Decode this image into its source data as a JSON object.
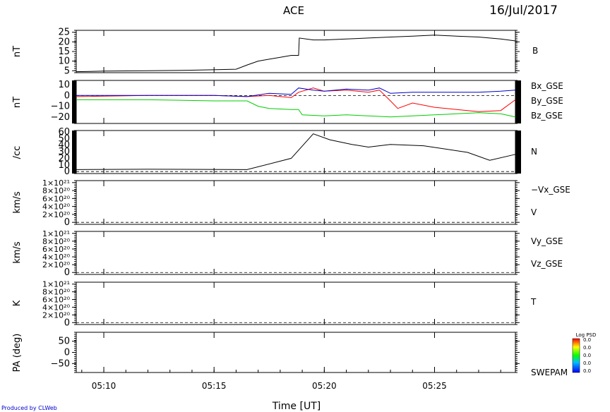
{
  "header": {
    "mission": "ACE",
    "date": "16/Jul/2017"
  },
  "footer": {
    "xaxis_title": "Time [UT]",
    "credit": "Produced by CLWeb"
  },
  "colorbar": {
    "title": "Log PSD",
    "tick_labels": [
      "0.0",
      "0.0",
      "0.0",
      "0.0",
      "0.0"
    ]
  },
  "chart_data": {
    "type": "line",
    "x_ticks": [
      "05:10",
      "05:15",
      "05:20",
      "05:25"
    ],
    "panels": [
      {
        "id": "B",
        "ylabel": "nT",
        "yticks": [
          "25",
          "20",
          "15",
          "10",
          "5"
        ],
        "ylim": [
          4,
          26
        ],
        "series": [
          {
            "name": "B",
            "color": "#000000",
            "x": [
              "05:08:45",
              "05:10:00",
              "05:12:00",
              "05:14:00",
              "05:16:00",
              "05:16:30",
              "05:17:00",
              "05:17:30",
              "05:18:00",
              "05:18:30",
              "05:18:50",
              "05:18:52",
              "05:19:30",
              "05:20:00",
              "05:21:00",
              "05:22:00",
              "05:23:00",
              "05:24:00",
              "05:25:00",
              "05:26:00",
              "05:27:00",
              "05:28:00",
              "05:28:40"
            ],
            "values": [
              4.5,
              4.8,
              5.0,
              5.3,
              5.8,
              8,
              10,
              11,
              12,
              13,
              13,
              22,
              21,
              21,
              21.5,
              22,
              22.5,
              23,
              23.5,
              23,
              22.5,
              21.5,
              20.5
            ]
          }
        ],
        "legend": [
          "B"
        ]
      },
      {
        "id": "B_GSE",
        "ylabel": "nT",
        "yticks": [
          "10",
          "0",
          "−10",
          "−20"
        ],
        "ylim": [
          -26,
          14
        ],
        "series": [
          {
            "name": "Bx_GSE",
            "color": "#ff0000",
            "x": [
              "05:08:45",
              "05:12:00",
              "05:15:00",
              "05:16:30",
              "05:17:30",
              "05:18:30",
              "05:18:50",
              "05:19:30",
              "05:20:00",
              "05:21:00",
              "05:22:00",
              "05:22:30",
              "05:23:00",
              "05:23:20",
              "05:24:00",
              "05:25:00",
              "05:26:00",
              "05:27:00",
              "05:28:00",
              "05:28:40"
            ],
            "values": [
              -1,
              0,
              0,
              -1,
              0,
              -2,
              3,
              7,
              4,
              5,
              3,
              5,
              -5,
              -12,
              -7,
              -11,
              -13,
              -15,
              -14,
              -4
            ]
          },
          {
            "name": "By_GSE",
            "color": "#00cc00",
            "x": [
              "05:08:45",
              "05:12:00",
              "05:15:00",
              "05:16:30",
              "05:17:00",
              "05:17:30",
              "05:18:30",
              "05:18:50",
              "05:19:00",
              "05:20:00",
              "05:21:00",
              "05:22:00",
              "05:23:00",
              "05:24:00",
              "05:25:00",
              "05:26:00",
              "05:27:00",
              "05:28:00",
              "05:28:40"
            ],
            "values": [
              -4,
              -4,
              -5,
              -5,
              -10,
              -12,
              -13,
              -13,
              -18,
              -19,
              -18,
              -19,
              -20,
              -19,
              -18,
              -17,
              -16,
              -17,
              -20
            ]
          },
          {
            "name": "Bz_GSE",
            "color": "#0000cc",
            "x": [
              "05:08:45",
              "05:12:00",
              "05:15:00",
              "05:16:30",
              "05:17:30",
              "05:18:30",
              "05:18:50",
              "05:19:30",
              "05:20:00",
              "05:21:00",
              "05:22:00",
              "05:22:30",
              "05:23:00",
              "05:24:00",
              "05:25:00",
              "05:26:00",
              "05:27:00",
              "05:28:00",
              "05:28:40"
            ],
            "values": [
              0,
              0,
              0,
              -1,
              2,
              1,
              7,
              5,
              4,
              6,
              5,
              7,
              2,
              3,
              3,
              3,
              3,
              4,
              5
            ]
          }
        ],
        "legend": [
          "Bx_GSE",
          "By_GSE",
          "Bz_GSE"
        ]
      },
      {
        "id": "N",
        "ylabel": "/cc",
        "yticks": [
          "60",
          "50",
          "40",
          "30",
          "20",
          "10",
          "0"
        ],
        "ylim": [
          -3,
          62
        ],
        "series": [
          {
            "name": "N",
            "color": "#000000",
            "x": [
              "05:08:45",
              "05:12:00",
              "05:16:30",
              "05:18:30",
              "05:19:30",
              "05:20:15",
              "05:21:15",
              "05:22:00",
              "05:23:00",
              "05:24:30",
              "05:26:30",
              "05:27:30",
              "05:28:40"
            ],
            "values": [
              3,
              3.5,
              3,
              20,
              57,
              48,
              41,
              37,
              41,
              39,
              29,
              17,
              26
            ]
          }
        ],
        "legend": [
          "N"
        ]
      },
      {
        "id": "Vx",
        "ylabel": "km/s",
        "yticks": [
          "1×10²¹",
          "8×10²⁰",
          "6×10²⁰",
          "4×10²⁰",
          "2×10²⁰",
          "0"
        ],
        "ylim": [
          -5e+19,
          1.05e+21
        ],
        "series": [],
        "legend": [
          "−Vx_GSE",
          "V"
        ]
      },
      {
        "id": "Vyz",
        "ylabel": "km/s",
        "yticks": [
          "1×10²¹",
          "8×10²⁰",
          "6×10²⁰",
          "4×10²⁰",
          "2×10²⁰",
          "0"
        ],
        "ylim": [
          -5e+19,
          1.05e+21
        ],
        "series": [],
        "legend": [
          "Vy_GSE",
          "Vz_GSE"
        ]
      },
      {
        "id": "T",
        "ylabel": "K",
        "yticks": [
          "1×10²¹",
          "8×10²⁰",
          "6×10²⁰",
          "4×10²⁰",
          "2×10²⁰",
          "0"
        ],
        "ylim": [
          -5e+19,
          1.05e+21
        ],
        "series": [],
        "legend": [
          "T"
        ]
      },
      {
        "id": "PA",
        "ylabel": "PA (deg)",
        "yticks": [
          "50",
          "0",
          "−50"
        ],
        "ylim": [
          -90,
          90
        ],
        "series": [],
        "legend": [
          "SWEPAM"
        ]
      }
    ],
    "colors": {
      "Bx_GSE": "#ff0000",
      "By_GSE": "#00cc00",
      "Bz_GSE": "#0000cc",
      "Vx": "#ff0000",
      "Vy": "#00cc00",
      "Vz": "#0000cc"
    }
  }
}
